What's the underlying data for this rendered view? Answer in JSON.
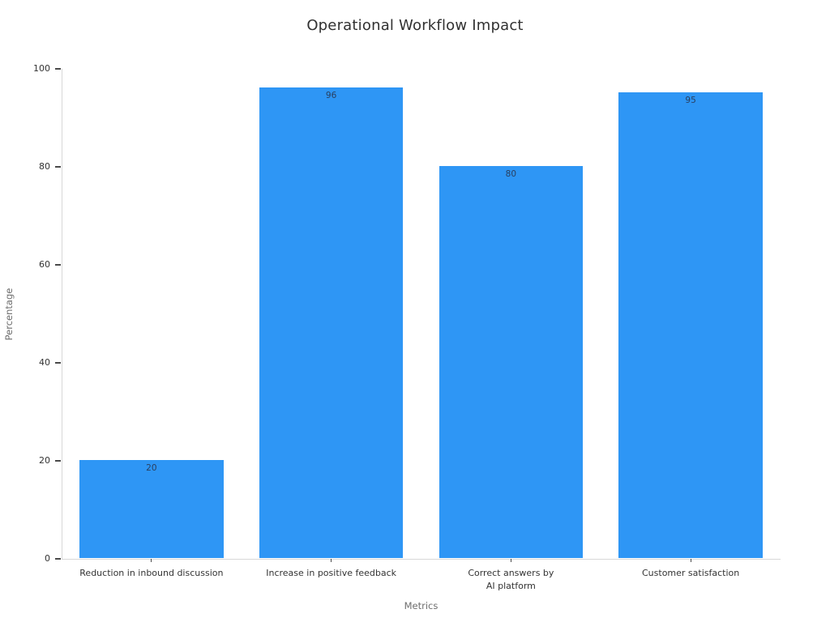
{
  "chart_data": {
    "type": "bar",
    "title": "Operational Workflow Impact",
    "xlabel": "Metrics",
    "ylabel": "Percentage",
    "categories": [
      "Reduction in inbound discussion",
      "Increase in positive feedback",
      "Correct answers by\nAI platform",
      "Customer satisfaction"
    ],
    "values": [
      20,
      96,
      80,
      95
    ],
    "bar_labels": [
      "20",
      "96",
      "80",
      "95"
    ],
    "ylim": [
      0,
      100
    ],
    "yticks": [
      0,
      20,
      40,
      60,
      80,
      100
    ],
    "grid": false,
    "legend": "none",
    "bar_color": "#2E96F5",
    "value_label_color": "#2a3f5f",
    "tick_label_color": "#333333",
    "axis_title_color": "#6e6e6e",
    "axis_line_color": "#d8d8d8",
    "background_color": "#ffffff"
  }
}
